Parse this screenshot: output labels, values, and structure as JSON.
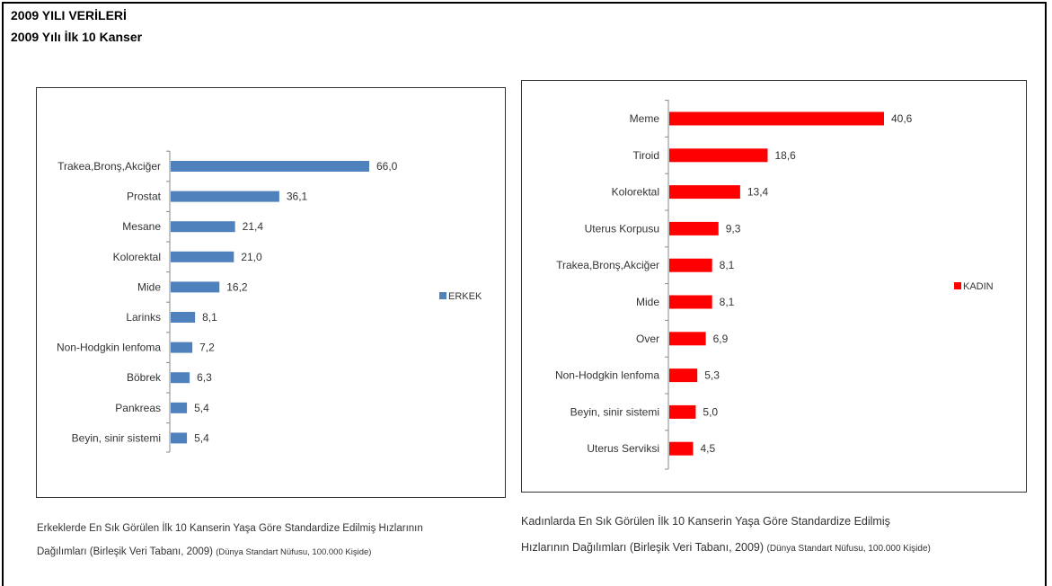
{
  "header": {
    "title": "2009 YILI VERİLERİ",
    "subtitle": "2009 Yılı İlk 10 Kanser"
  },
  "chart_data": [
    {
      "type": "bar",
      "orientation": "horizontal",
      "categories": [
        "Trakea,Bronş,Akciğer",
        "Prostat",
        "Mesane",
        "Kolorektal",
        "Mide",
        "Larinks",
        "Non-Hodgkin lenfoma",
        "Böbrek",
        "Pankreas",
        "Beyin, sinir sistemi"
      ],
      "series": [
        {
          "name": "ERKEK",
          "values": [
            66.0,
            36.1,
            21.4,
            21.0,
            16.2,
            8.1,
            7.2,
            6.3,
            5.4,
            5.4
          ],
          "labels": [
            "66,0",
            "36,1",
            "21,4",
            "21,0",
            "16,2",
            "8,1",
            "7,2",
            "6,3",
            "5,4",
            "5,4"
          ],
          "color": "#4f81bd"
        }
      ],
      "legend_position": "right",
      "caption": "Erkeklerde En Sık Görülen İlk 10 Kanserin Yaşa Göre Standardize Edilmiş Hızlarının",
      "caption2": "Dağılımları (Birleşik Veri Tabanı, 2009)",
      "caption_note": "(Dünya Standart Nüfusu, 100.000 Kişide)"
    },
    {
      "type": "bar",
      "orientation": "horizontal",
      "categories": [
        "Meme",
        "Tiroid",
        "Kolorektal",
        "Uterus Korpusu",
        "Trakea,Bronş,Akciğer",
        "Mide",
        "Over",
        "Non-Hodgkin lenfoma",
        "Beyin, sinir sistemi",
        "Uterus Serviksi"
      ],
      "series": [
        {
          "name": "KADIN",
          "values": [
            40.6,
            18.6,
            13.4,
            9.3,
            8.1,
            8.1,
            6.9,
            5.3,
            5.0,
            4.5
          ],
          "labels": [
            "40,6",
            "18,6",
            "13,4",
            "9,3",
            "8,1",
            "8,1",
            "6,9",
            "5,3",
            "5,0",
            "4,5"
          ],
          "color": "#ff0000"
        }
      ],
      "legend_position": "right",
      "caption": "Kadınlarda En Sık Görülen İlk 10 Kanserin Yaşa Göre Standardize Edilmiş",
      "caption2": "Hızlarının Dağılımları (Birleşik Veri Tabanı, 2009)",
      "caption_note": "(Dünya Standart Nüfusu, 100.000 Kişide)"
    }
  ]
}
